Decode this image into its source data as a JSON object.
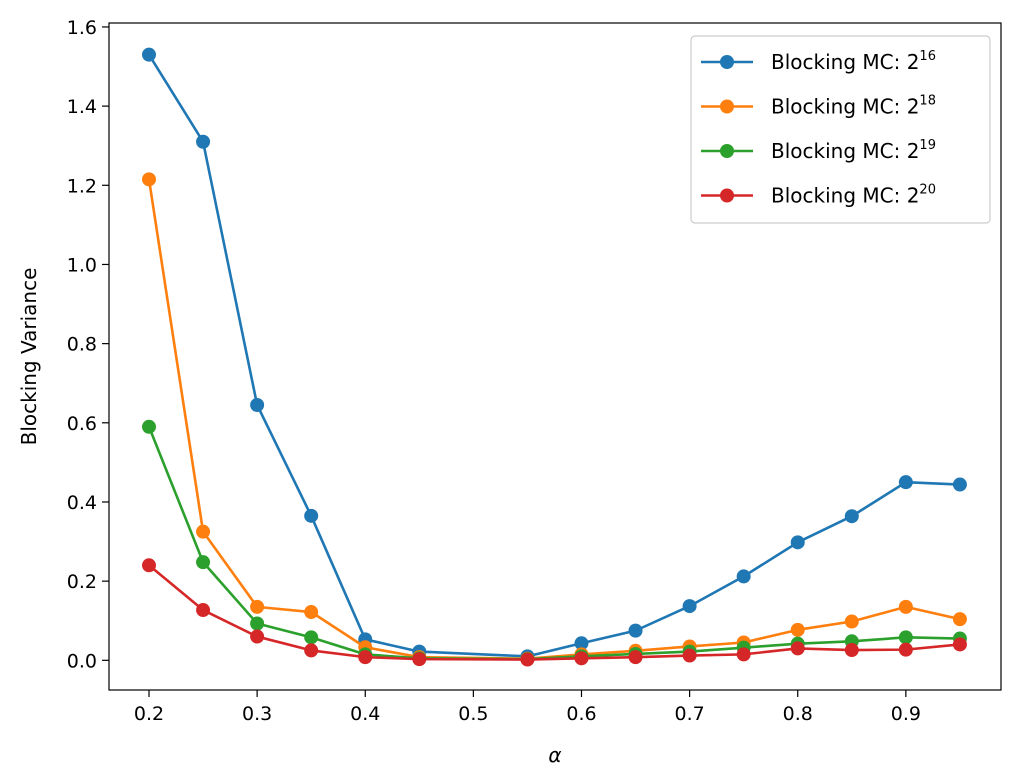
{
  "chart_data": {
    "type": "line",
    "title": "",
    "xlabel": "α",
    "ylabel": "Blocking Variance",
    "xlim": [
      0.163,
      0.988
    ],
    "ylim": [
      -0.075,
      1.61
    ],
    "xticks": [
      0.2,
      0.3,
      0.4,
      0.5,
      0.6,
      0.7,
      0.8,
      0.9
    ],
    "xtick_labels": [
      "0.2",
      "0.3",
      "0.4",
      "0.5",
      "0.6",
      "0.7",
      "0.8",
      "0.9"
    ],
    "yticks": [
      0.0,
      0.2,
      0.4,
      0.6,
      0.8,
      1.0,
      1.2,
      1.4,
      1.6
    ],
    "ytick_labels": [
      "0.0",
      "0.2",
      "0.4",
      "0.6",
      "0.8",
      "1.0",
      "1.2",
      "1.4",
      "1.6"
    ],
    "grid": false,
    "legend_position": "top-right",
    "x": [
      0.2,
      0.25,
      0.3,
      0.35,
      0.4,
      0.45,
      0.55,
      0.6,
      0.65,
      0.7,
      0.75,
      0.8,
      0.85,
      0.9,
      0.95
    ],
    "series": [
      {
        "name": "Blocking MC: 2^16",
        "legend_base": "Blocking MC: 2",
        "legend_exp": "16",
        "color": "#1f77b4",
        "values": [
          1.53,
          1.31,
          0.645,
          0.365,
          0.053,
          0.022,
          0.01,
          0.043,
          0.075,
          0.137,
          0.212,
          0.298,
          0.364,
          0.45,
          0.444
        ]
      },
      {
        "name": "Blocking MC: 2^18",
        "legend_base": "Blocking MC: 2",
        "legend_exp": "18",
        "color": "#ff7f0e",
        "values": [
          1.215,
          0.325,
          0.135,
          0.122,
          0.033,
          0.008,
          0.004,
          0.015,
          0.024,
          0.035,
          0.045,
          0.077,
          0.098,
          0.135,
          0.104
        ]
      },
      {
        "name": "Blocking MC: 2^19",
        "legend_base": "Blocking MC: 2",
        "legend_exp": "19",
        "color": "#2ca02c",
        "values": [
          0.59,
          0.248,
          0.093,
          0.058,
          0.015,
          0.005,
          0.003,
          0.01,
          0.016,
          0.022,
          0.032,
          0.042,
          0.048,
          0.058,
          0.055
        ]
      },
      {
        "name": "Blocking MC: 2^20",
        "legend_base": "Blocking MC: 2",
        "legend_exp": "20",
        "color": "#d62728",
        "values": [
          0.24,
          0.127,
          0.06,
          0.025,
          0.008,
          0.003,
          0.002,
          0.005,
          0.008,
          0.012,
          0.015,
          0.03,
          0.026,
          0.027,
          0.04
        ]
      }
    ]
  }
}
